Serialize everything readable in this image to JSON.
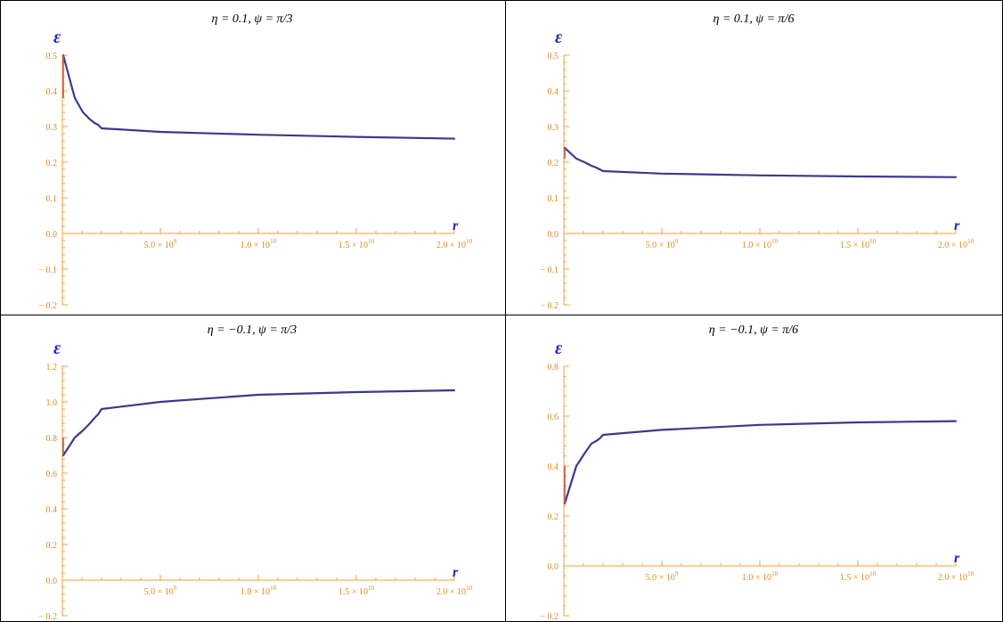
{
  "colors": {
    "axis": "#f0a23a",
    "tick_label": "#e08a1e",
    "curve": "#3a3a8c",
    "curve_tip": "#c0504d",
    "axis_name": "#1f1fcc",
    "frame": "#000000"
  },
  "chart_data": [
    {
      "type": "line",
      "title": "η = 0.1, ψ = π/3",
      "xlabel": "r",
      "ylabel": "ε",
      "xlim": [
        0,
        20000000000
      ],
      "ylim": [
        -0.2,
        0.5
      ],
      "x_ticks": [
        5000000000,
        10000000000,
        15000000000,
        20000000000
      ],
      "x_tick_labels": [
        {
          "mant": "5.0 × 10",
          "exp": "9"
        },
        {
          "mant": "1.0 × 10",
          "exp": "10"
        },
        {
          "mant": "1.5 × 10",
          "exp": "10"
        },
        {
          "mant": "2.0 × 10",
          "exp": "10"
        }
      ],
      "y_ticks": [
        -0.2,
        -0.1,
        0.0,
        0.1,
        0.2,
        0.3,
        0.4,
        0.5
      ],
      "y_tick_labels": [
        "− 0.2",
        "− 0.1",
        "0.0",
        "0.1",
        "0.2",
        "0.3",
        "0.4",
        "0.5"
      ],
      "series": [
        {
          "x": [
            1000000,
            10000000,
            50000000,
            100000000,
            200000000,
            500000000,
            1000000000,
            2000000000,
            5000000000,
            10000000000,
            15000000000,
            20000000000
          ],
          "y": [
            0.5,
            0.38,
            0.34,
            0.33,
            0.32,
            0.31,
            0.305,
            0.295,
            0.285,
            0.277,
            0.271,
            0.266
          ]
        }
      ]
    },
    {
      "type": "line",
      "title": "η = 0.1, ψ = π/6",
      "xlabel": "r",
      "ylabel": "ε",
      "xlim": [
        0,
        20000000000
      ],
      "ylim": [
        -0.2,
        0.5
      ],
      "x_ticks": [
        5000000000,
        10000000000,
        15000000000,
        20000000000
      ],
      "x_tick_labels": [
        {
          "mant": "5.0 × 10",
          "exp": "9"
        },
        {
          "mant": "1.0 × 10",
          "exp": "10"
        },
        {
          "mant": "1.5 × 10",
          "exp": "10"
        },
        {
          "mant": "2.0 × 10",
          "exp": "10"
        }
      ],
      "y_ticks": [
        -0.2,
        -0.1,
        0.0,
        0.1,
        0.2,
        0.3,
        0.4,
        0.5
      ],
      "y_tick_labels": [
        "− 0.2",
        "− 0.1",
        "0.0",
        "0.1",
        "0.2",
        "0.3",
        "0.4",
        "0.5"
      ],
      "series": [
        {
          "x": [
            1000000,
            10000000,
            50000000,
            100000000,
            200000000,
            500000000,
            1000000000,
            2000000000,
            5000000000,
            10000000000,
            15000000000,
            20000000000
          ],
          "y": [
            0.24,
            0.21,
            0.2,
            0.195,
            0.19,
            0.185,
            0.18,
            0.175,
            0.168,
            0.163,
            0.16,
            0.158
          ]
        }
      ]
    },
    {
      "type": "line",
      "title": "η = −0.1, ψ = π/3",
      "xlabel": "r",
      "ylabel": "ε",
      "xlim": [
        0,
        20000000000
      ],
      "ylim": [
        -0.2,
        1.2
      ],
      "x_ticks": [
        5000000000,
        10000000000,
        15000000000,
        20000000000
      ],
      "x_tick_labels": [
        {
          "mant": "5.0 × 10",
          "exp": "9"
        },
        {
          "mant": "1.0 × 10",
          "exp": "10"
        },
        {
          "mant": "1.5 × 10",
          "exp": "10"
        },
        {
          "mant": "2.0 × 10",
          "exp": "10"
        }
      ],
      "y_ticks": [
        -0.2,
        0.0,
        0.2,
        0.4,
        0.6,
        0.8,
        1.0,
        1.2
      ],
      "y_tick_labels": [
        "− 0.2",
        "0.0",
        "0.2",
        "0.4",
        "0.6",
        "0.8",
        "1.0",
        "1.2"
      ],
      "series": [
        {
          "x": [
            1000000,
            10000000,
            50000000,
            100000000,
            200000000,
            500000000,
            1000000000,
            2000000000,
            5000000000,
            10000000000,
            15000000000,
            20000000000
          ],
          "y": [
            0.7,
            0.8,
            0.84,
            0.86,
            0.88,
            0.91,
            0.93,
            0.96,
            1.0,
            1.04,
            1.055,
            1.065
          ]
        }
      ]
    },
    {
      "type": "line",
      "title": "η = −0.1, ψ = π/6",
      "xlabel": "r",
      "ylabel": "ε",
      "xlim": [
        0,
        20000000000
      ],
      "ylim": [
        -0.2,
        0.8
      ],
      "x_ticks": [
        5000000000,
        10000000000,
        15000000000,
        20000000000
      ],
      "x_tick_labels": [
        {
          "mant": "5.0 × 10",
          "exp": "9"
        },
        {
          "mant": "1.0 × 10",
          "exp": "10"
        },
        {
          "mant": "1.5 × 10",
          "exp": "10"
        },
        {
          "mant": "2.0 × 10",
          "exp": "10"
        }
      ],
      "y_ticks": [
        -0.2,
        0.0,
        0.2,
        0.4,
        0.6,
        0.8
      ],
      "y_tick_labels": [
        "− 0.2",
        "0.0",
        "0.2",
        "0.4",
        "0.6",
        "0.8"
      ],
      "series": [
        {
          "x": [
            1000000,
            10000000,
            50000000,
            100000000,
            200000000,
            500000000,
            1000000000,
            2000000000,
            5000000000,
            10000000000,
            15000000000,
            20000000000
          ],
          "y": [
            0.25,
            0.4,
            0.45,
            0.47,
            0.49,
            0.5,
            0.51,
            0.525,
            0.545,
            0.565,
            0.575,
            0.58
          ]
        }
      ]
    }
  ]
}
